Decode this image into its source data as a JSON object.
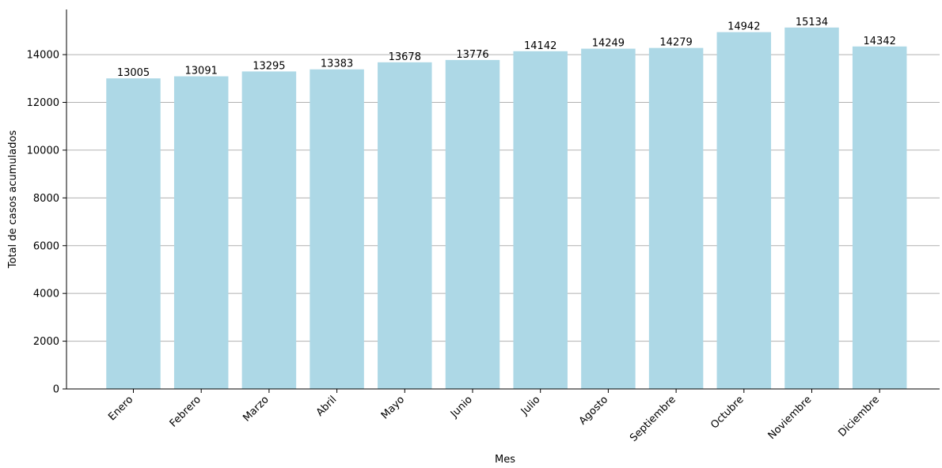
{
  "chart_data": {
    "type": "bar",
    "title": "",
    "xlabel": "Mes",
    "ylabel": "Total de casos acumulados",
    "categories": [
      "Enero",
      "Febrero",
      "Marzo",
      "Abril",
      "Mayo",
      "Junio",
      "Julio",
      "Agosto",
      "Septiembre",
      "Octubre",
      "Noviembre",
      "Diciembre"
    ],
    "values": [
      13005,
      13091,
      13295,
      13383,
      13678,
      13776,
      14142,
      14249,
      14279,
      14942,
      15134,
      14342
    ],
    "ylim": [
      0,
      15890
    ],
    "yticks": [
      0,
      2000,
      4000,
      6000,
      8000,
      10000,
      12000,
      14000
    ],
    "grid": "y",
    "bar_color": "#add8e6",
    "grid_color": "#b0b0b0",
    "x_tick_rotation_deg": 45,
    "data_labels": true
  }
}
